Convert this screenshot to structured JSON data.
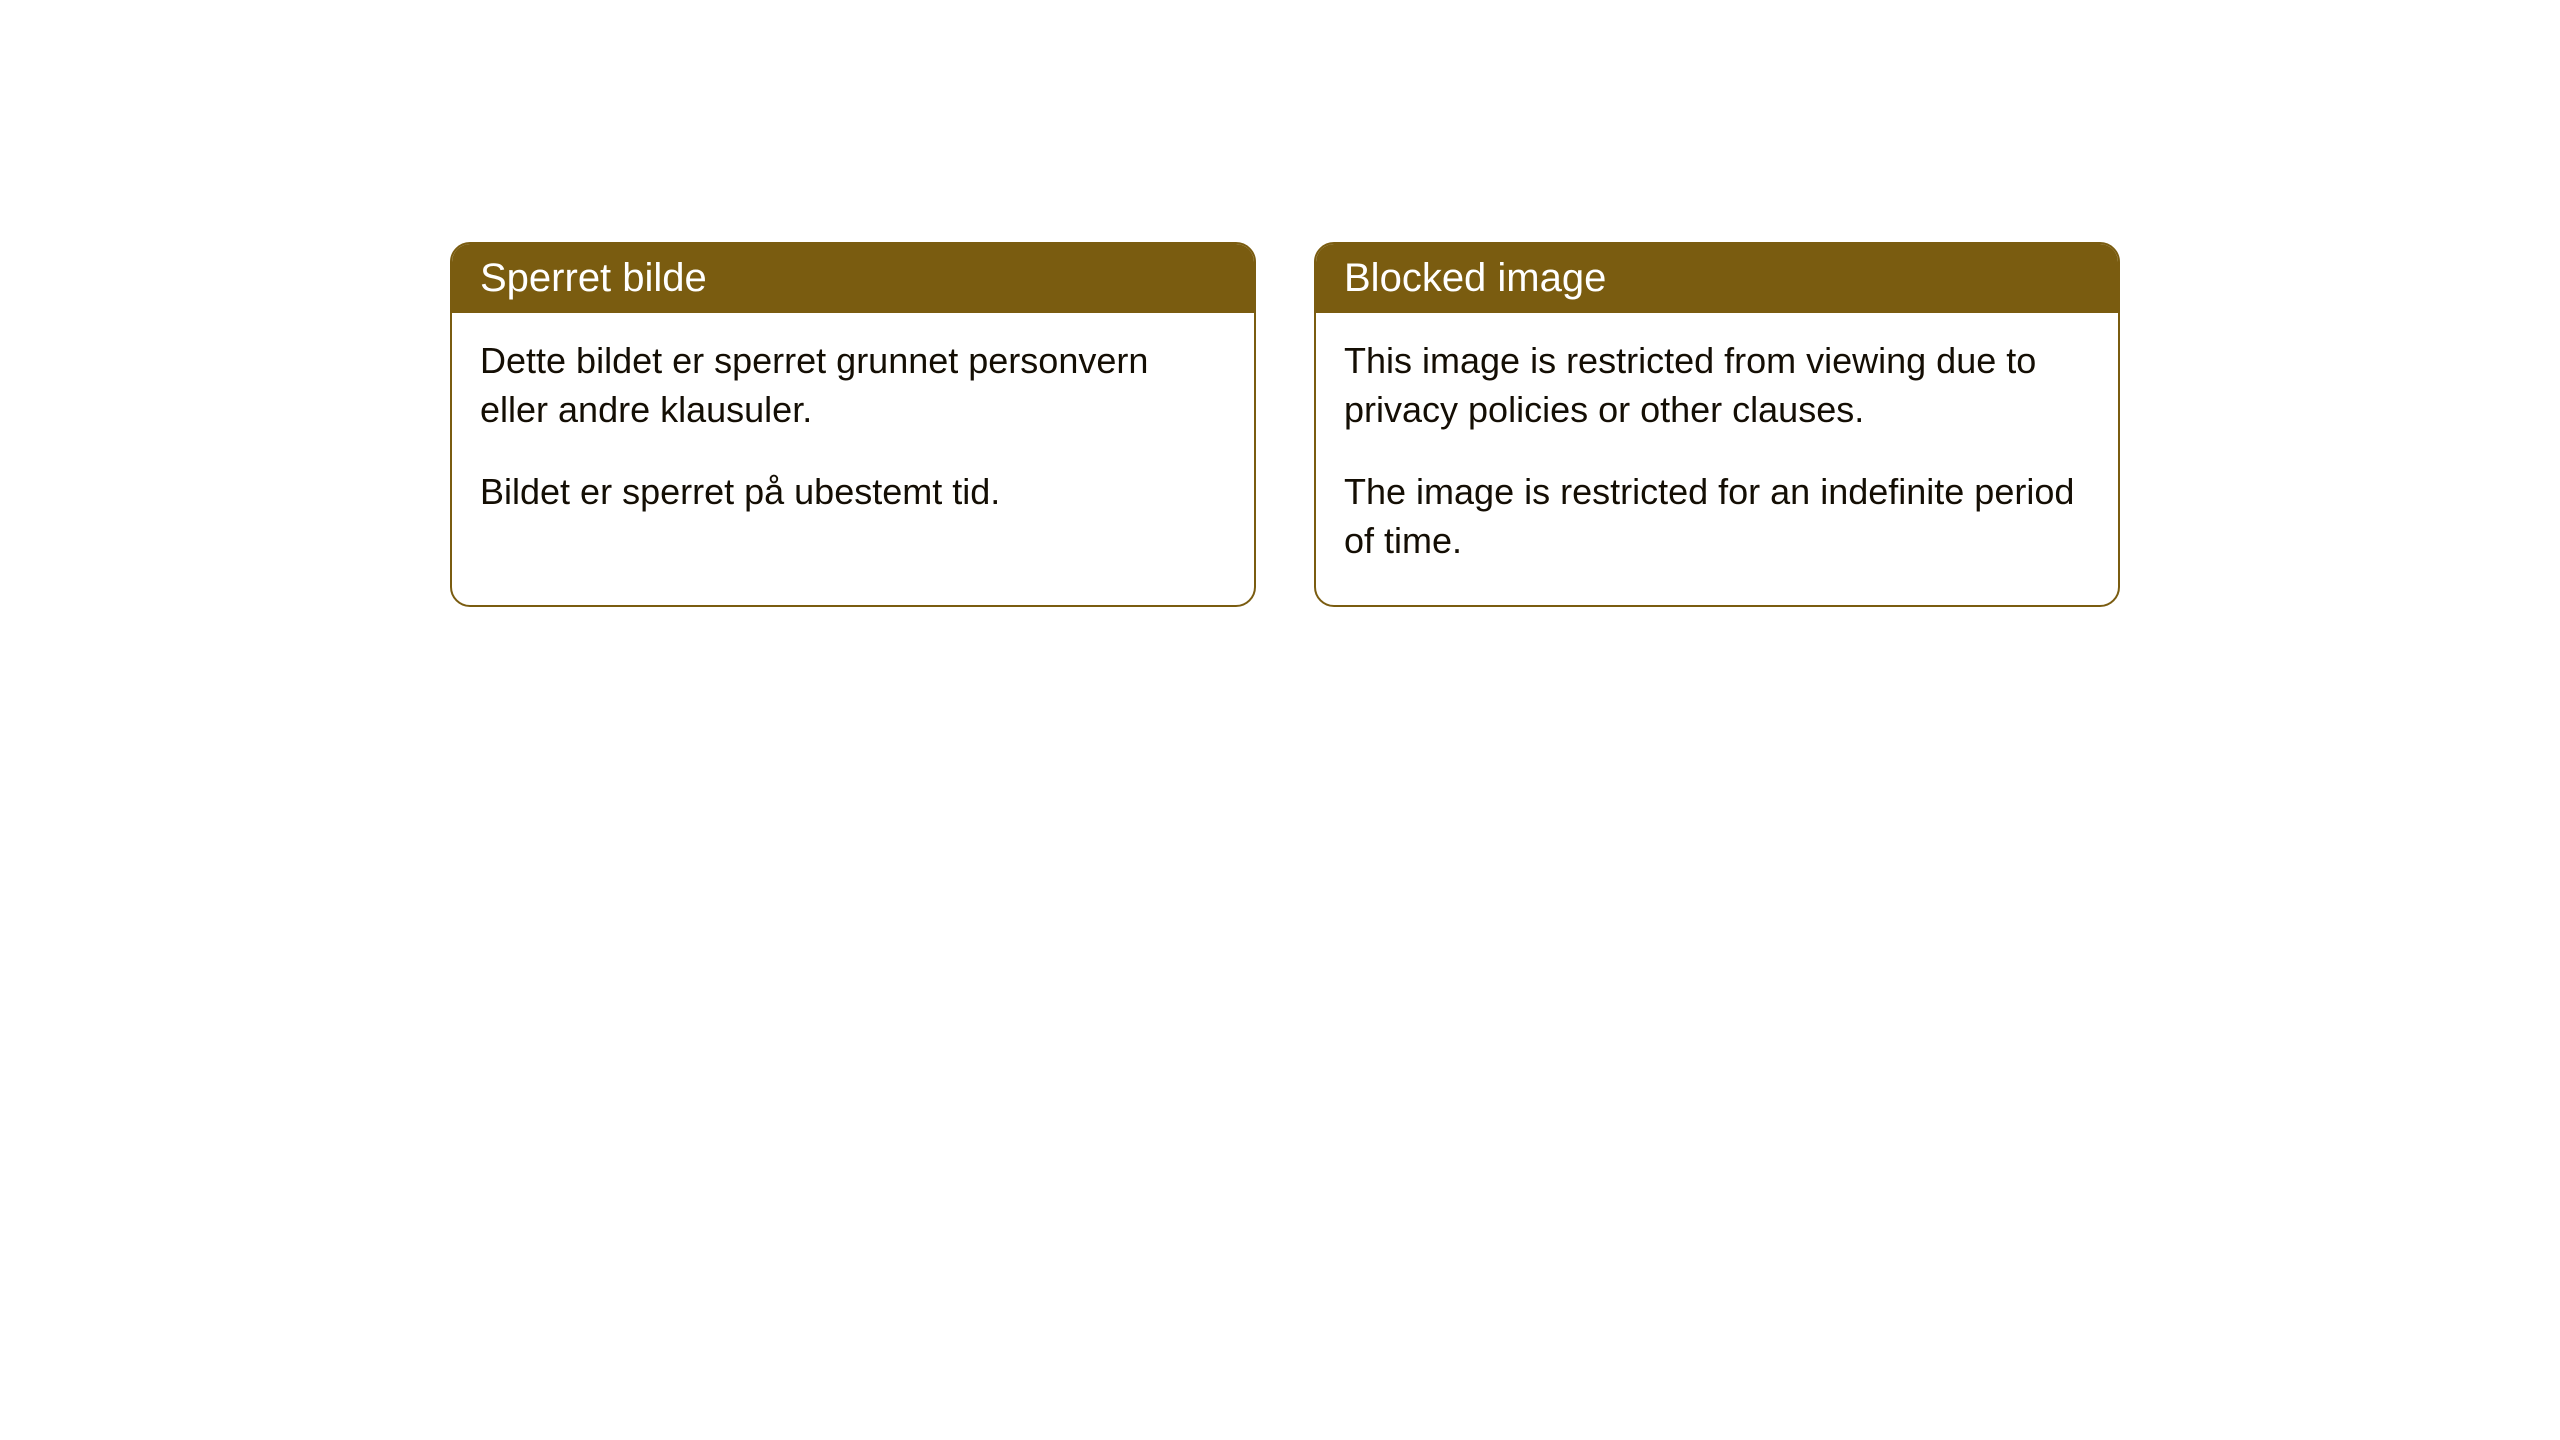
{
  "cards": [
    {
      "title": "Sperret bilde",
      "paragraph1": "Dette bildet er sperret grunnet personvern eller andre klausuler.",
      "paragraph2": "Bildet er sperret på ubestemt tid."
    },
    {
      "title": "Blocked image",
      "paragraph1": "This image is restricted from viewing due to privacy policies or other clauses.",
      "paragraph2": "The image is restricted for an indefinite period of time."
    }
  ],
  "style": {
    "header_bg": "#7a5c10",
    "header_text": "#ffffff",
    "border_color": "#7a5c10",
    "body_bg": "#ffffff",
    "body_text": "#140e04",
    "border_radius": 20,
    "title_fontsize": 40,
    "body_fontsize": 36
  }
}
